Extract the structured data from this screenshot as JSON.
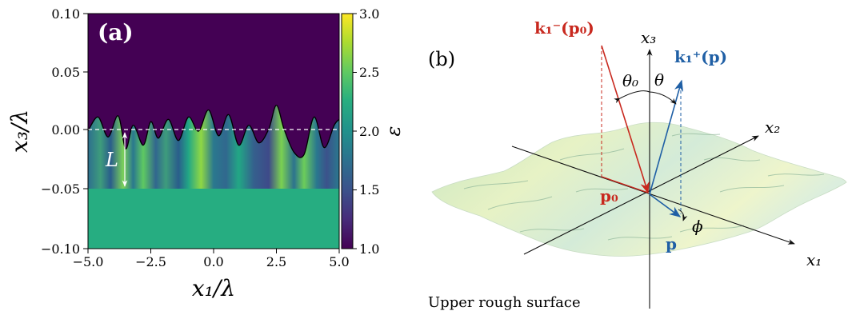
{
  "panel_a": {
    "label": "(a)",
    "xlabel": "x₁/λ",
    "ylabel": "x₃/λ",
    "colorbar_label": "ε",
    "annotation_L": "L",
    "xticks": [
      "−5.0",
      "−2.5",
      "0.0",
      "2.5",
      "5.0"
    ],
    "yticks": [
      "0.10",
      "0.05",
      "0.00",
      "−0.05",
      "−0.10"
    ],
    "cbar_ticks": [
      "3.0",
      "2.5",
      "2.0",
      "1.5",
      "1.0"
    ],
    "colors": {
      "upper_medium": "#440154",
      "substrate": "#26ad81"
    }
  },
  "panel_b": {
    "label": "(b)",
    "caption": "Upper rough surface",
    "axis_x1": "x₁",
    "axis_x2": "x₂",
    "axis_x3": "x₃",
    "k_incident": "k₁⁻(p₀)",
    "k_scattered": "k₁⁺(p)",
    "p0_label": "p₀",
    "p_label": "p",
    "theta0": "θ₀",
    "theta": "θ",
    "phi": "ϕ",
    "colors": {
      "incident": "#c8281e",
      "scattered": "#1f5fa5"
    }
  },
  "chart_data": [
    {
      "type": "heatmap",
      "title": "",
      "xlabel": "x₁/λ",
      "ylabel": "x₃/λ",
      "xlim": [
        -5.0,
        5.0
      ],
      "ylim": [
        -0.1,
        0.1
      ],
      "colorbar": {
        "label": "ε",
        "range": [
          1.0,
          3.0
        ],
        "colormap": "viridis"
      },
      "regions": [
        {
          "name": "",
          "x3_range": [
            0.0,
            0.1
          ],
          "epsilon": 1.0
        },
        {
          "name": "",
          "x3_range": [
            -0.05,
            0.0
          ],
          "epsilon_range": [
            1.5,
            2.6
          ]
        },
        {
          "name": "",
          "x3_range": [
            -0.1,
            -0.05
          ],
          "epsilon": 2.0
        }
      ],
      "surface_profile": {
        "x": [
          -5.0,
          -4.6,
          -4.2,
          -3.8,
          -3.5,
          -3.2,
          -2.8,
          -2.5,
          -2.2,
          -1.8,
          -1.4,
          -1.0,
          -0.6,
          -0.2,
          0.2,
          0.6,
          1.0,
          1.4,
          1.8,
          2.2,
          2.5,
          2.8,
          3.2,
          3.6,
          4.0,
          4.4,
          4.8,
          5.0
        ],
        "x3": [
          0.0,
          0.012,
          -0.005,
          0.013,
          -0.015,
          0.005,
          -0.012,
          0.008,
          -0.006,
          0.01,
          -0.008,
          0.012,
          0.0,
          0.018,
          -0.004,
          0.014,
          -0.012,
          0.005,
          -0.01,
          0.002,
          0.022,
          0.002,
          -0.018,
          -0.02,
          0.012,
          -0.014,
          0.005,
          0.01
        ]
      },
      "annotations": [
        {
          "text": "L",
          "from": [
            -3.5,
            0.0
          ],
          "to": [
            -3.5,
            -0.05
          ]
        }
      ]
    }
  ]
}
